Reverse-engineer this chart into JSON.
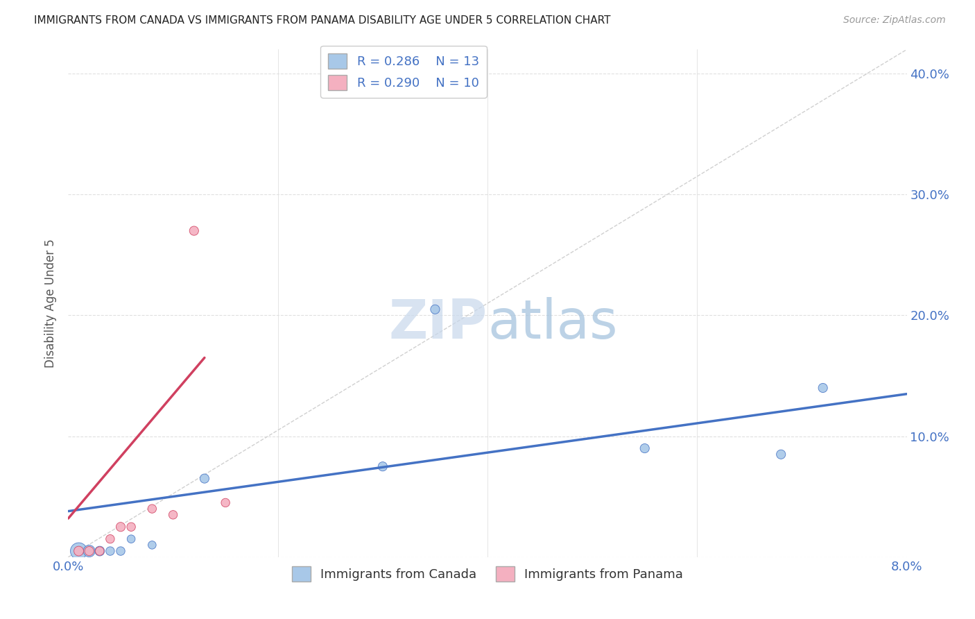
{
  "title": "IMMIGRANTS FROM CANADA VS IMMIGRANTS FROM PANAMA DISABILITY AGE UNDER 5 CORRELATION CHART",
  "source": "Source: ZipAtlas.com",
  "ylabel": "Disability Age Under 5",
  "xlim": [
    0.0,
    0.08
  ],
  "ylim": [
    0.0,
    0.42
  ],
  "xticks": [
    0.0,
    0.02,
    0.04,
    0.06,
    0.08
  ],
  "yticks": [
    0.0,
    0.1,
    0.2,
    0.3,
    0.4
  ],
  "ytick_labels_right": [
    "",
    "10.0%",
    "20.0%",
    "30.0%",
    "40.0%"
  ],
  "canada_R": "0.286",
  "canada_N": "13",
  "panama_R": "0.290",
  "panama_N": "10",
  "canada_color": "#a8c8e8",
  "panama_color": "#f4b0c0",
  "canada_line_color": "#4472c4",
  "panama_line_color": "#d04060",
  "ref_line_color": "#cccccc",
  "canada_scatter_x": [
    0.001,
    0.002,
    0.003,
    0.004,
    0.005,
    0.006,
    0.008,
    0.013,
    0.03,
    0.035,
    0.055,
    0.068,
    0.072
  ],
  "canada_scatter_y": [
    0.005,
    0.005,
    0.005,
    0.005,
    0.005,
    0.015,
    0.01,
    0.065,
    0.075,
    0.205,
    0.09,
    0.085,
    0.14
  ],
  "canada_scatter_sizes": [
    300,
    150,
    100,
    80,
    80,
    70,
    70,
    90,
    90,
    90,
    90,
    90,
    90
  ],
  "panama_scatter_x": [
    0.001,
    0.002,
    0.003,
    0.004,
    0.005,
    0.006,
    0.008,
    0.01,
    0.012,
    0.015
  ],
  "panama_scatter_y": [
    0.005,
    0.005,
    0.005,
    0.015,
    0.025,
    0.025,
    0.04,
    0.035,
    0.27,
    0.045
  ],
  "panama_scatter_sizes": [
    100,
    90,
    80,
    80,
    90,
    80,
    80,
    80,
    90,
    80
  ],
  "canada_trend_x": [
    0.0,
    0.08
  ],
  "canada_trend_y": [
    0.038,
    0.135
  ],
  "panama_trend_x": [
    0.0,
    0.013
  ],
  "panama_trend_y": [
    0.032,
    0.165
  ],
  "background_color": "#ffffff",
  "grid_color": "#e0e0e0",
  "title_color": "#222222",
  "axis_label_color": "#4472c4",
  "legend_labels": [
    "Immigrants from Canada",
    "Immigrants from Panama"
  ]
}
